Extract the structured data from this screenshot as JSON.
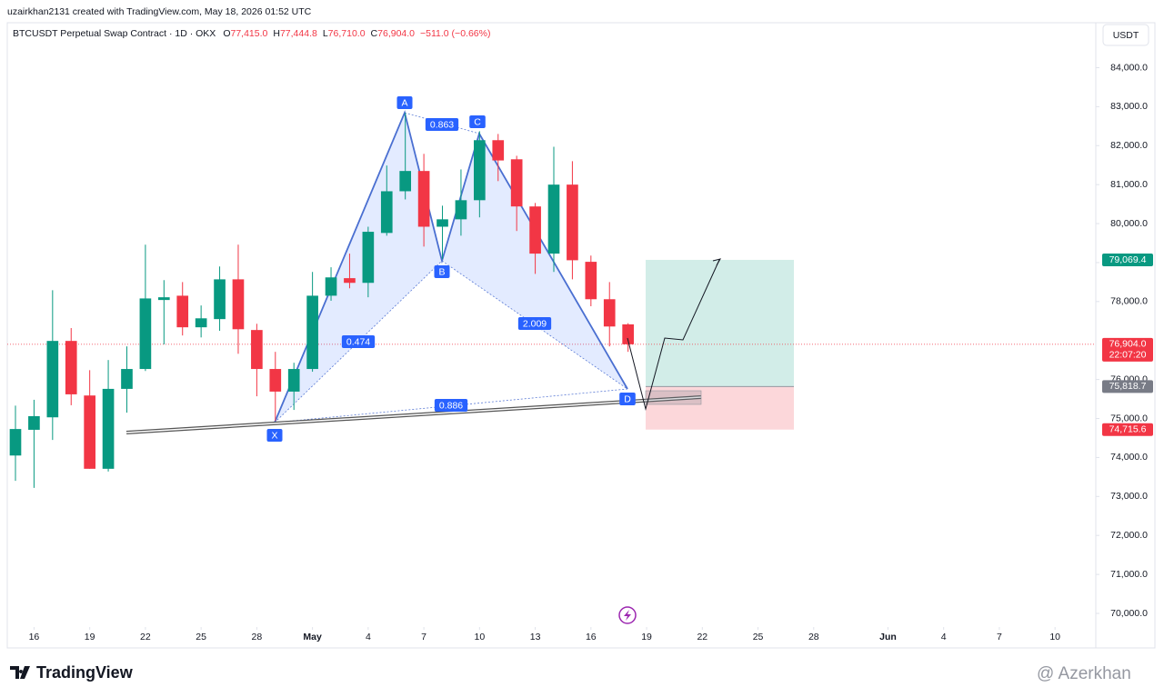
{
  "header": {
    "credit": "uzairkhan2131 created with TradingView.com, May 18, 2026 01:52 UTC",
    "symbol": "BTCUSDT Perpetual Swap Contract · 1D · OKX",
    "ohlc": [
      {
        "key": "O",
        "value": "77,415.0"
      },
      {
        "key": "H",
        "value": "77,444.8"
      },
      {
        "key": "L",
        "value": "76,710.0"
      },
      {
        "key": "C",
        "value": "76,904.0"
      }
    ],
    "change": "−511.0 (−0.66%)",
    "currency": "USDT"
  },
  "chart_data": {
    "type": "candlestick",
    "x": [
      "2026-04-15",
      "2026-04-16",
      "2026-04-17",
      "2026-04-18",
      "2026-04-19",
      "2026-04-20",
      "2026-04-21",
      "2026-04-22",
      "2026-04-23",
      "2026-04-24",
      "2026-04-25",
      "2026-04-26",
      "2026-04-27",
      "2026-04-28",
      "2026-04-29",
      "2026-04-30",
      "2026-05-01",
      "2026-05-02",
      "2026-05-03",
      "2026-05-04",
      "2026-05-05",
      "2026-05-06",
      "2026-05-07",
      "2026-05-08",
      "2026-05-09",
      "2026-05-10",
      "2026-05-11",
      "2026-05-12",
      "2026-05-13",
      "2026-05-14",
      "2026-05-15",
      "2026-05-16",
      "2026-05-17",
      "2026-05-18"
    ],
    "open": [
      74050,
      74710,
      75030,
      76990,
      75590,
      73710,
      75760,
      76270,
      78040,
      78150,
      77340,
      77550,
      78570,
      77270,
      76270,
      75690,
      76270,
      78150,
      78600,
      78480,
      79760,
      80830,
      81350,
      79920,
      80110,
      80600,
      82140,
      81650,
      80440,
      79230,
      81000,
      79020,
      78060,
      77415
    ],
    "high": [
      75330,
      75480,
      78290,
      77320,
      76240,
      76500,
      76850,
      79460,
      78550,
      78500,
      77900,
      78900,
      79460,
      77430,
      76710,
      76430,
      78760,
      78880,
      79230,
      79920,
      81490,
      82840,
      81790,
      80460,
      81390,
      82370,
      82300,
      81740,
      80530,
      81970,
      81600,
      79180,
      78500,
      77444.8
    ],
    "low": [
      73400,
      73220,
      74450,
      75340,
      73710,
      73640,
      75150,
      76220,
      76900,
      77130,
      77080,
      77250,
      76660,
      75570,
      74940,
      75220,
      76200,
      78020,
      78340,
      78110,
      79690,
      80620,
      79410,
      79090,
      79690,
      80160,
      81090,
      79810,
      78710,
      78760,
      78570,
      77880,
      76850,
      76710
    ],
    "close": [
      74730,
      75060,
      76990,
      75620,
      73710,
      75760,
      76270,
      78080,
      78110,
      77340,
      77570,
      78570,
      77290,
      76270,
      75690,
      76270,
      78150,
      78620,
      78480,
      79790,
      80830,
      81350,
      79920,
      80110,
      80600,
      82140,
      81620,
      80440,
      79230,
      81000,
      79060,
      78060,
      77360,
      76904
    ],
    "up_color": "#089981",
    "down_color": "#f23645",
    "xlim": [
      "2026-04-15",
      "2026-06-12"
    ],
    "xticks": [
      {
        "value": "2026-04-16",
        "label": "16"
      },
      {
        "value": "2026-04-19",
        "label": "19"
      },
      {
        "value": "2026-04-22",
        "label": "22"
      },
      {
        "value": "2026-04-25",
        "label": "25"
      },
      {
        "value": "2026-04-28",
        "label": "28"
      },
      {
        "value": "2026-05-01",
        "label": "May"
      },
      {
        "value": "2026-05-04",
        "label": "4"
      },
      {
        "value": "2026-05-07",
        "label": "7"
      },
      {
        "value": "2026-05-10",
        "label": "10"
      },
      {
        "value": "2026-05-13",
        "label": "13"
      },
      {
        "value": "2026-05-16",
        "label": "16"
      },
      {
        "value": "2026-05-19",
        "label": "19"
      },
      {
        "value": "2026-05-22",
        "label": "22"
      },
      {
        "value": "2026-05-25",
        "label": "25"
      },
      {
        "value": "2026-05-28",
        "label": "28"
      },
      {
        "value": "2026-06-01",
        "label": "Jun"
      },
      {
        "value": "2026-06-04",
        "label": "4"
      },
      {
        "value": "2026-06-07",
        "label": "7"
      },
      {
        "value": "2026-06-10",
        "label": "10"
      }
    ],
    "ylim": [
      69650,
      85550
    ],
    "yticks": [
      {
        "value": 70000,
        "label": "70,000.0"
      },
      {
        "value": 71000,
        "label": "71,000.0"
      },
      {
        "value": 72000,
        "label": "72,000.0"
      },
      {
        "value": 73000,
        "label": "73,000.0"
      },
      {
        "value": 74000,
        "label": "74,000.0"
      },
      {
        "value": 75000,
        "label": "75,000.0"
      },
      {
        "value": 76000,
        "label": "76,000.0"
      },
      {
        "value": 78000,
        "label": "78,000.0"
      },
      {
        "value": 79000,
        "label": "79,000.0"
      },
      {
        "value": 80000,
        "label": "80,000.0"
      },
      {
        "value": 81000,
        "label": "81,000.0"
      },
      {
        "value": 82000,
        "label": "82,000.0"
      },
      {
        "value": 83000,
        "label": "83,000.0"
      },
      {
        "value": 84000,
        "label": "84,000.0"
      }
    ],
    "grid": false,
    "price_tags": [
      {
        "value": 79069.4,
        "label": "79,069.4",
        "color": "#089981"
      },
      {
        "value": 76904.0,
        "label": "76,904.0",
        "sub": "22:07:20",
        "color": "#f23645"
      },
      {
        "value": 75818.7,
        "label": "75,818.7",
        "color": "#787b86"
      },
      {
        "value": 74715.6,
        "label": "74,715.6",
        "color": "#f23645"
      }
    ],
    "pattern": {
      "points": [
        "X",
        "A",
        "B",
        "C",
        "D"
      ],
      "ratios": [
        "0.474",
        "0.863",
        "2.009",
        "0.886"
      ]
    }
  },
  "footer": {
    "logo": "TradingView",
    "watermark": "@ Azerkhan"
  }
}
